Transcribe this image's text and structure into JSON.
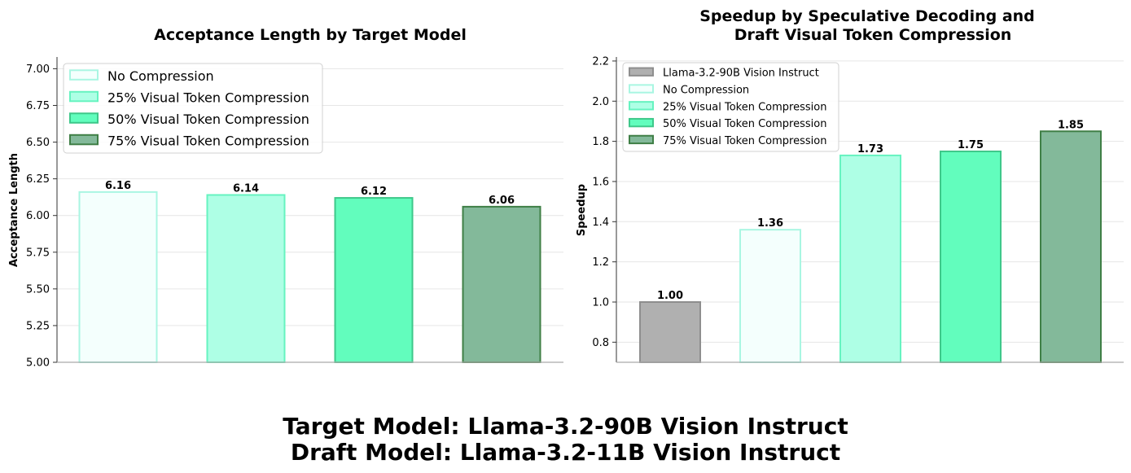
{
  "figure": {
    "suptitle_line1": "Target Model: Llama-3.2-90B Vision Instruct",
    "suptitle_line2": "Draft Model: Llama-3.2-11B Vision Instruct"
  },
  "chart_data": [
    {
      "type": "bar",
      "title": "Acceptance Length by Target Model",
      "xlabel": "",
      "ylabel": "Acceptance Length",
      "ylim": [
        5.0,
        7.08
      ],
      "yticks": [
        5.0,
        5.25,
        5.5,
        5.75,
        6.0,
        6.25,
        6.5,
        6.75,
        7.0
      ],
      "ytick_labels": [
        "5.00",
        "5.25",
        "5.50",
        "5.75",
        "6.00",
        "6.25",
        "6.50",
        "6.75",
        "7.00"
      ],
      "grid": "y",
      "legend_position": "top-left",
      "categories": [
        "No Compression",
        "25% Visual Token Compression",
        "50% Visual Token Compression",
        "75% Visual Token Compression"
      ],
      "values": [
        6.16,
        6.14,
        6.12,
        6.06
      ],
      "data_labels": [
        "6.16",
        "6.14",
        "6.12",
        "6.06"
      ],
      "legend": [
        "No Compression",
        "25% Visual Token Compression",
        "50% Visual Token Compression",
        "75% Visual Token Compression"
      ],
      "fill_colors": [
        "#f4fffd",
        "#aeffe5",
        "#62fdbd",
        "#83b99a"
      ],
      "edge_colors": [
        "#a9f6e2",
        "#66f3c0",
        "#3ec88a",
        "#3f7f46"
      ]
    },
    {
      "type": "bar",
      "title_line1": "Speedup by Speculative Decoding and",
      "title_line2": "Draft Visual Token Compression",
      "xlabel": "",
      "ylabel": "Speedup",
      "ylim": [
        0.7,
        2.22
      ],
      "yticks": [
        0.8,
        1.0,
        1.2,
        1.4,
        1.6,
        1.8,
        2.0,
        2.2
      ],
      "ytick_labels": [
        "0.8",
        "1.0",
        "1.2",
        "1.4",
        "1.6",
        "1.8",
        "2.0",
        "2.2"
      ],
      "grid": "y",
      "legend_position": "top-left",
      "categories": [
        "Llama-3.2-90B Vision Instruct",
        "No Compression",
        "25% Visual Token Compression",
        "50% Visual Token Compression",
        "75% Visual Token Compression"
      ],
      "values": [
        1.0,
        1.36,
        1.73,
        1.75,
        1.85
      ],
      "data_labels": [
        "1.00",
        "1.36",
        "1.73",
        "1.75",
        "1.85"
      ],
      "legend": [
        "Llama-3.2-90B Vision Instruct",
        "No Compression",
        "25% Visual Token Compression",
        "50% Visual Token Compression",
        "75% Visual Token Compression"
      ],
      "fill_colors": [
        "#b0b0b0",
        "#f4fffd",
        "#aeffe5",
        "#62fdbd",
        "#83b99a"
      ],
      "edge_colors": [
        "#8e8e8e",
        "#a9f6e2",
        "#66f3c0",
        "#3ec88a",
        "#3f7f46"
      ]
    }
  ]
}
